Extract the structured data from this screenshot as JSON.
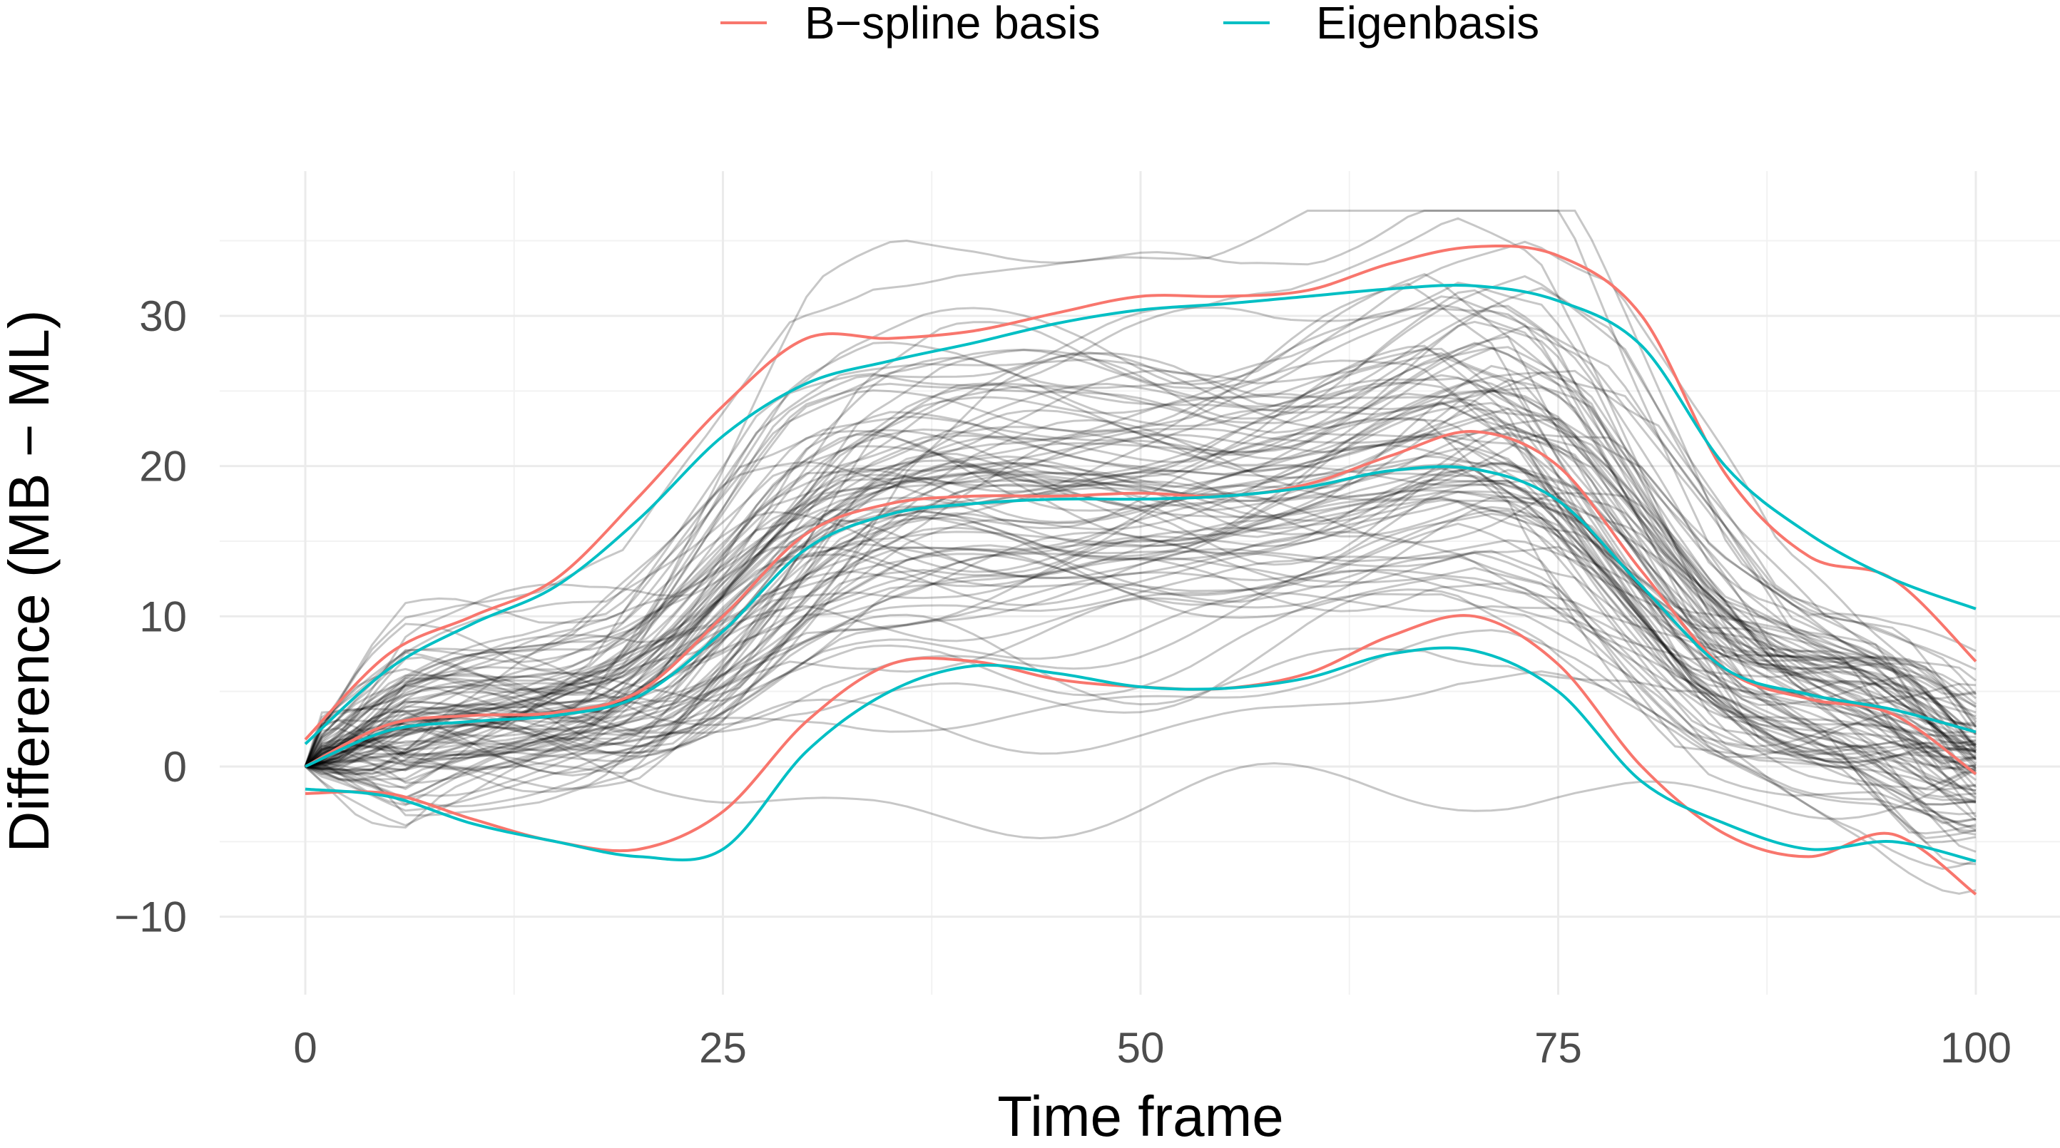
{
  "chart_data": {
    "type": "line",
    "title": "",
    "xlabel": "Time frame",
    "ylabel": "Difference (MB − ML)",
    "xlim": [
      0,
      100
    ],
    "ylim": [
      -15,
      40
    ],
    "x_ticks": [
      0,
      25,
      50,
      75,
      100
    ],
    "x_tick_labels": [
      "0",
      "25",
      "50",
      "75",
      "100"
    ],
    "y_ticks": [
      -10,
      0,
      10,
      20,
      30
    ],
    "y_tick_labels": [
      "−10",
      "0",
      "10",
      "20",
      "30"
    ],
    "grid": true,
    "legend_position": "top",
    "legend": [
      {
        "label": "B−spline basis",
        "color": "#f8766d"
      },
      {
        "label": "Eigenbasis",
        "color": "#00bfc4"
      }
    ],
    "background_curves": {
      "count": 100,
      "color": "#000000",
      "opacity": 0.22,
      "description_range": "individual curves starting at 0"
    },
    "series": [
      {
        "name": "B−spline basis",
        "band": "upper",
        "color": "#f8766d",
        "x": [
          0,
          5,
          10,
          15,
          20,
          25,
          30,
          35,
          40,
          45,
          50,
          55,
          60,
          65,
          70,
          75,
          80,
          85,
          90,
          95,
          100
        ],
        "y": [
          1.8,
          7.5,
          10.0,
          12.5,
          18.0,
          24.0,
          28.5,
          28.5,
          29.0,
          30.2,
          31.3,
          31.3,
          31.7,
          33.5,
          34.6,
          34.0,
          30.0,
          19.5,
          14.0,
          12.5,
          7.0
        ]
      },
      {
        "name": "B−spline basis",
        "band": "mean",
        "color": "#f8766d",
        "x": [
          0,
          5,
          10,
          15,
          20,
          25,
          30,
          35,
          40,
          45,
          50,
          55,
          60,
          65,
          70,
          75,
          80,
          85,
          90,
          95,
          100
        ],
        "y": [
          0.0,
          2.8,
          3.4,
          3.6,
          5.0,
          10.0,
          15.5,
          17.5,
          18.0,
          18.0,
          18.2,
          18.0,
          18.8,
          20.7,
          22.3,
          20.0,
          13.0,
          6.5,
          4.5,
          3.5,
          -0.5
        ]
      },
      {
        "name": "B−spline basis",
        "band": "lower",
        "color": "#f8766d",
        "x": [
          0,
          5,
          10,
          15,
          20,
          25,
          30,
          35,
          40,
          45,
          50,
          55,
          60,
          65,
          70,
          75,
          80,
          85,
          90,
          95,
          100
        ],
        "y": [
          -1.8,
          -1.8,
          -3.5,
          -5.0,
          -5.5,
          -3.0,
          3.0,
          6.8,
          7.0,
          5.8,
          5.3,
          5.2,
          6.2,
          8.7,
          10.0,
          6.8,
          0.0,
          -4.5,
          -6.0,
          -4.5,
          -8.5
        ]
      },
      {
        "name": "Eigenbasis",
        "band": "upper",
        "color": "#00bfc4",
        "x": [
          0,
          5,
          10,
          15,
          20,
          25,
          30,
          35,
          40,
          45,
          50,
          55,
          60,
          65,
          70,
          75,
          80,
          85,
          90,
          95,
          100
        ],
        "y": [
          1.5,
          6.5,
          9.5,
          12.0,
          16.5,
          22.0,
          25.5,
          27.0,
          28.2,
          29.5,
          30.4,
          30.8,
          31.3,
          31.8,
          32.0,
          31.0,
          28.0,
          20.0,
          15.5,
          12.5,
          10.5
        ]
      },
      {
        "name": "Eigenbasis",
        "band": "mean",
        "color": "#00bfc4",
        "x": [
          0,
          5,
          10,
          15,
          20,
          25,
          30,
          35,
          40,
          45,
          50,
          55,
          60,
          65,
          70,
          75,
          80,
          85,
          90,
          95,
          100
        ],
        "y": [
          0.0,
          2.4,
          3.0,
          3.4,
          4.7,
          9.0,
          14.5,
          16.8,
          17.5,
          17.8,
          17.8,
          18.0,
          18.6,
          19.7,
          19.8,
          17.7,
          12.0,
          6.5,
          4.8,
          3.8,
          2.3
        ]
      },
      {
        "name": "Eigenbasis",
        "band": "lower",
        "color": "#00bfc4",
        "x": [
          0,
          5,
          10,
          15,
          20,
          25,
          30,
          35,
          40,
          45,
          50,
          55,
          60,
          65,
          70,
          75,
          80,
          85,
          90,
          95,
          100
        ],
        "y": [
          -1.5,
          -2.0,
          -3.8,
          -5.0,
          -6.0,
          -5.5,
          1.0,
          5.0,
          6.7,
          6.2,
          5.3,
          5.2,
          5.9,
          7.5,
          7.7,
          5.0,
          -1.0,
          -3.8,
          -5.5,
          -5.0,
          -6.3
        ]
      }
    ]
  }
}
